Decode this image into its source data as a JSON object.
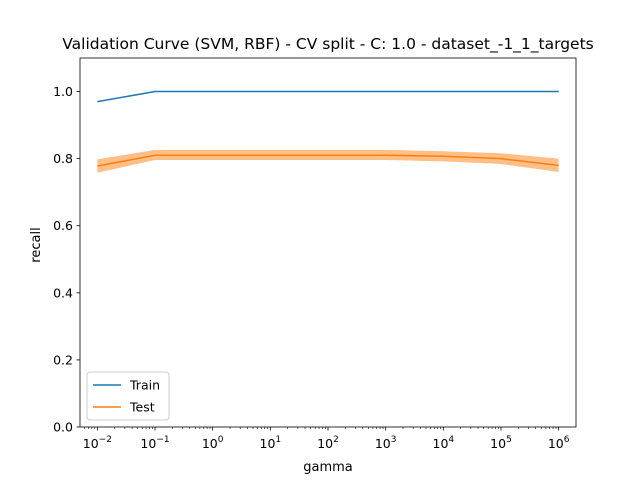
{
  "chart_data": {
    "type": "line",
    "title": "Validation Curve (SVM, RBF) - CV split - C: 1.0 - dataset_-1_1_targets",
    "xlabel": "gamma",
    "ylabel": "recall",
    "xscale": "log",
    "xlim": [
      0.005,
      2000000
    ],
    "ylim": [
      0.0,
      1.1
    ],
    "grid": false,
    "legend_position": "lower-left",
    "x": [
      0.01,
      0.1,
      1,
      10,
      100,
      1000,
      10000,
      100000,
      1000000
    ],
    "x_tick_labels": [
      {
        "base": "10",
        "exp": "−2"
      },
      {
        "base": "10",
        "exp": "−1"
      },
      {
        "base": "10",
        "exp": "0"
      },
      {
        "base": "10",
        "exp": "1"
      },
      {
        "base": "10",
        "exp": "2"
      },
      {
        "base": "10",
        "exp": "3"
      },
      {
        "base": "10",
        "exp": "4"
      },
      {
        "base": "10",
        "exp": "5"
      },
      {
        "base": "10",
        "exp": "6"
      }
    ],
    "y_ticks": [
      0.0,
      0.2,
      0.4,
      0.6,
      0.8,
      1.0
    ],
    "y_tick_labels": [
      "0.0",
      "0.2",
      "0.4",
      "0.6",
      "0.8",
      "1.0"
    ],
    "series": [
      {
        "name": "Train",
        "color": "#1f77b4",
        "values": [
          0.97,
          1.0,
          1.0,
          1.0,
          1.0,
          1.0,
          1.0,
          1.0,
          1.0
        ]
      },
      {
        "name": "Test",
        "color": "#ff7f0e",
        "values": [
          0.778,
          0.81,
          0.81,
          0.81,
          0.81,
          0.81,
          0.807,
          0.8,
          0.78
        ],
        "band_low": [
          0.758,
          0.796,
          0.796,
          0.796,
          0.796,
          0.796,
          0.792,
          0.784,
          0.76
        ],
        "band_high": [
          0.798,
          0.826,
          0.826,
          0.826,
          0.826,
          0.826,
          0.822,
          0.816,
          0.8
        ]
      }
    ]
  }
}
